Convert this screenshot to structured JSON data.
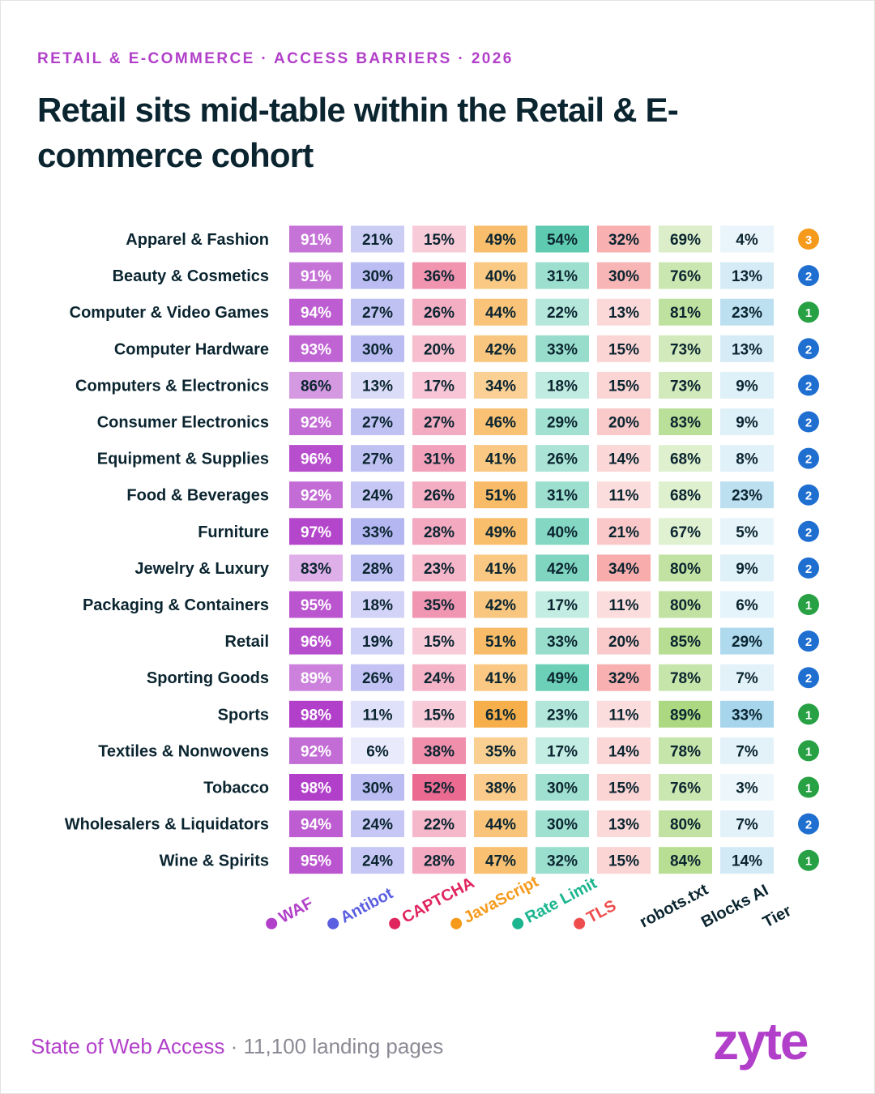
{
  "header": {
    "eyebrow": "RETAIL & E-COMMERCE · ACCESS BARRIERS · 2026",
    "title": "Retail sits mid-table within the Retail & E-commerce cohort"
  },
  "footer": {
    "brand": "State of Web Access",
    "separator": " · ",
    "subtitle": "11,100 landing pages",
    "logo": "zyte"
  },
  "colors": {
    "WAF": "#b13fc9",
    "Antibot": "#5a5ee0",
    "CAPTCHA": "#e0245e",
    "JavaScript": "#f59a1b",
    "Rate Limit": "#1bb58f",
    "TLS": "#ef4d4d",
    "robots.txt": "#7cc23a",
    "Blocks AI": "#3aa3d6",
    "tier1": "#27a143",
    "tier2": "#1f6fd1",
    "tier3": "#f59a1b"
  },
  "chart_data": {
    "type": "heatmap",
    "title": "Retail sits mid-table within the Retail & E-commerce cohort",
    "columns": [
      "WAF",
      "Antibot",
      "CAPTCHA",
      "JavaScript",
      "Rate Limit",
      "TLS",
      "robots.txt",
      "Blocks AI",
      "Tier"
    ],
    "legend_dots": [
      true,
      true,
      true,
      true,
      true,
      true,
      false,
      false,
      false
    ],
    "unit": "%",
    "rows": [
      {
        "label": "Apparel & Fashion",
        "values": [
          91,
          21,
          15,
          49,
          54,
          32,
          69,
          4
        ],
        "tier": 3
      },
      {
        "label": "Beauty & Cosmetics",
        "values": [
          91,
          30,
          36,
          40,
          31,
          30,
          76,
          13
        ],
        "tier": 2
      },
      {
        "label": "Computer & Video Games",
        "values": [
          94,
          27,
          26,
          44,
          22,
          13,
          81,
          23
        ],
        "tier": 1
      },
      {
        "label": "Computer Hardware",
        "values": [
          93,
          30,
          20,
          42,
          33,
          15,
          73,
          13
        ],
        "tier": 2
      },
      {
        "label": "Computers & Electronics",
        "values": [
          86,
          13,
          17,
          34,
          18,
          15,
          73,
          9
        ],
        "tier": 2
      },
      {
        "label": "Consumer Electronics",
        "values": [
          92,
          27,
          27,
          46,
          29,
          20,
          83,
          9
        ],
        "tier": 2
      },
      {
        "label": "Equipment & Supplies",
        "values": [
          96,
          27,
          31,
          41,
          26,
          14,
          68,
          8
        ],
        "tier": 2
      },
      {
        "label": "Food & Beverages",
        "values": [
          92,
          24,
          26,
          51,
          31,
          11,
          68,
          23
        ],
        "tier": 2
      },
      {
        "label": "Furniture",
        "values": [
          97,
          33,
          28,
          49,
          40,
          21,
          67,
          5
        ],
        "tier": 2
      },
      {
        "label": "Jewelry & Luxury",
        "values": [
          83,
          28,
          23,
          41,
          42,
          34,
          80,
          9
        ],
        "tier": 2
      },
      {
        "label": "Packaging & Containers",
        "values": [
          95,
          18,
          35,
          42,
          17,
          11,
          80,
          6
        ],
        "tier": 1
      },
      {
        "label": "Retail",
        "values": [
          96,
          19,
          15,
          51,
          33,
          20,
          85,
          29
        ],
        "tier": 2
      },
      {
        "label": "Sporting Goods",
        "values": [
          89,
          26,
          24,
          41,
          49,
          32,
          78,
          7
        ],
        "tier": 2
      },
      {
        "label": "Sports",
        "values": [
          98,
          11,
          15,
          61,
          23,
          11,
          89,
          33
        ],
        "tier": 1
      },
      {
        "label": "Textiles & Nonwovens",
        "values": [
          92,
          6,
          38,
          35,
          17,
          14,
          78,
          7
        ],
        "tier": 1
      },
      {
        "label": "Tobacco",
        "values": [
          98,
          30,
          52,
          38,
          30,
          15,
          76,
          3
        ],
        "tier": 1
      },
      {
        "label": "Wholesalers & Liquidators",
        "values": [
          94,
          24,
          22,
          44,
          30,
          13,
          80,
          7
        ],
        "tier": 2
      },
      {
        "label": "Wine & Spirits",
        "values": [
          95,
          24,
          28,
          47,
          32,
          15,
          84,
          14
        ],
        "tier": 1
      }
    ]
  }
}
